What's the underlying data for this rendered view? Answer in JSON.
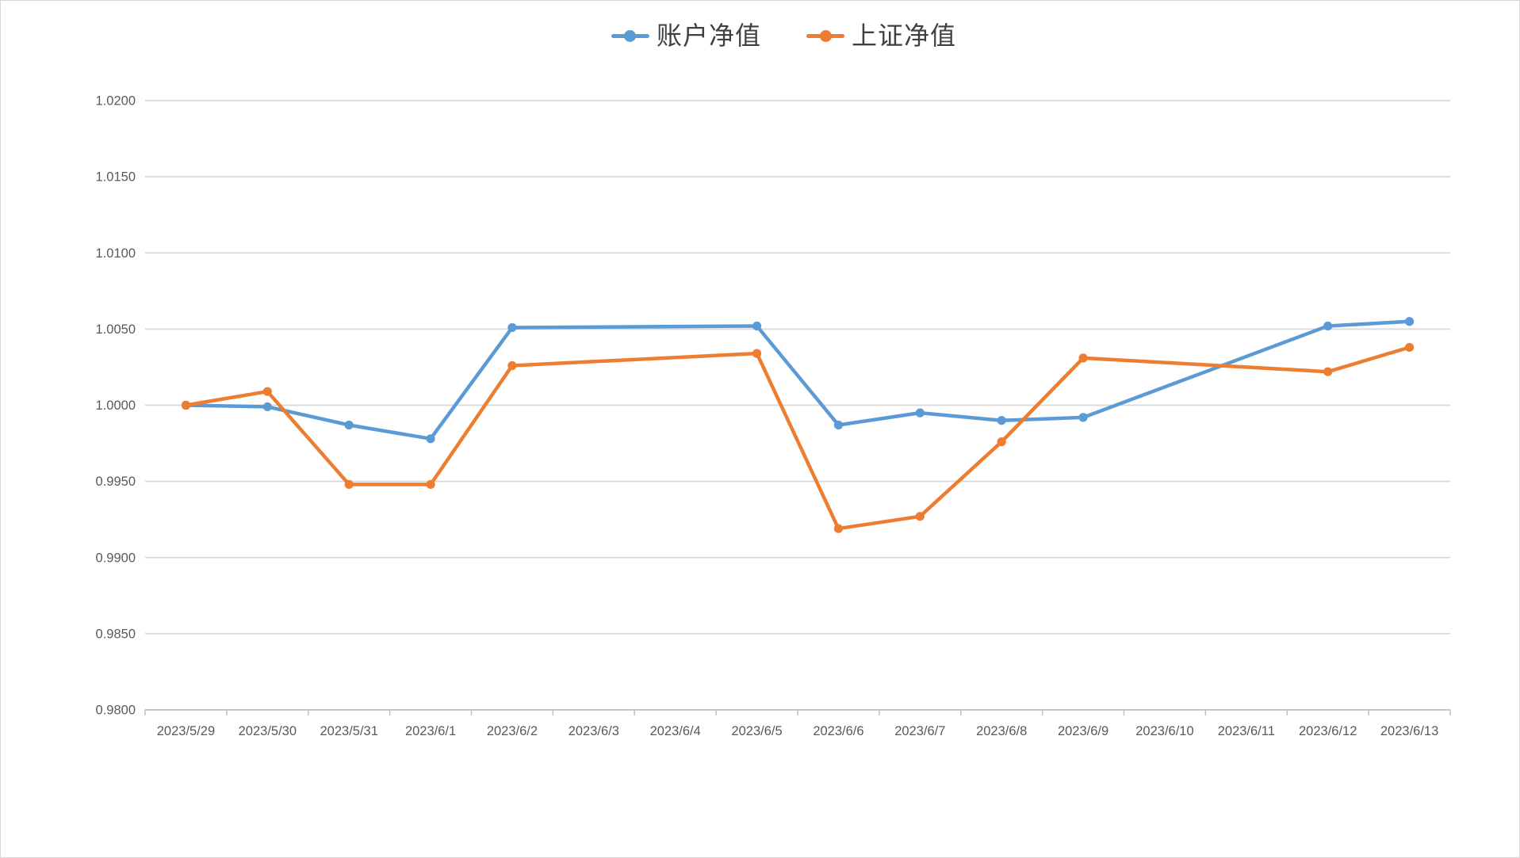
{
  "chart_data": {
    "type": "line",
    "title": "",
    "legend_position": "top-center",
    "grid": "horizontal",
    "x_categories": [
      "2023/5/29",
      "2023/5/30",
      "2023/5/31",
      "2023/6/1",
      "2023/6/2",
      "2023/6/3",
      "2023/6/4",
      "2023/6/5",
      "2023/6/6",
      "2023/6/7",
      "2023/6/8",
      "2023/6/9",
      "2023/6/10",
      "2023/6/11",
      "2023/6/12",
      "2023/6/13"
    ],
    "series": [
      {
        "id": "account-net-value",
        "name": "账户净值",
        "color": "#5B9BD5",
        "values": [
          1.0,
          0.9999,
          0.9987,
          0.9978,
          1.0051,
          null,
          null,
          1.0052,
          0.9987,
          0.9995,
          0.999,
          0.9992,
          null,
          null,
          1.0052,
          1.0055
        ]
      },
      {
        "id": "shanghai-net-value",
        "name": "上证净值",
        "color": "#ED7D31",
        "values": [
          1.0,
          1.0009,
          0.9948,
          0.9948,
          1.0026,
          null,
          null,
          1.0034,
          0.9919,
          0.9927,
          0.9976,
          1.0031,
          null,
          null,
          1.0022,
          1.0038
        ]
      }
    ],
    "y_axis": {
      "min": 0.98,
      "max": 1.02,
      "tick_step": 0.005,
      "tick_labels": [
        "0.9800",
        "0.9850",
        "0.9900",
        "0.9950",
        "1.0000",
        "1.0050",
        "1.0100",
        "1.0150",
        "1.0200"
      ]
    }
  },
  "colors": {
    "gridline": "#D9D9D9",
    "axis_line": "#BFBFBF",
    "axis_label": "#595959",
    "legend_text": "#404040",
    "background": "#FFFFFF",
    "border": "#D6D6D6"
  }
}
